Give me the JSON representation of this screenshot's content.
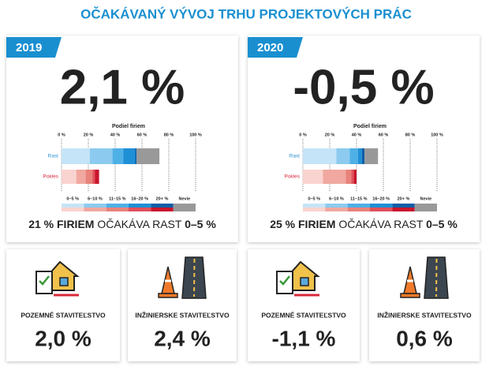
{
  "title": "OČAKÁVANÝ VÝVOJ TRHU PROJEKTOVÝCH PRÁC",
  "panels": [
    {
      "year": "2019",
      "headline": "2,1 %",
      "chart": {
        "type": "bar",
        "title": "Podiel firiem",
        "categories": [
          "Rast",
          "Pokles"
        ],
        "category_colors": [
          "#2a8fd0",
          "#d8283a"
        ],
        "xlim": [
          0,
          100
        ],
        "xticks": [
          {
            "value": 0,
            "label": "0 %"
          },
          {
            "value": 20,
            "label": "20 %"
          },
          {
            "value": 40,
            "label": "40 %"
          },
          {
            "value": 60,
            "label": "60 %"
          },
          {
            "value": 80,
            "label": "80 %"
          },
          {
            "value": 100,
            "label": "100 %"
          }
        ],
        "grid": true,
        "series": [
          {
            "name": "0–5 %",
            "colors": [
              "#c6e4f7",
              "#f9d3cf"
            ],
            "values": [
              21,
              11
            ]
          },
          {
            "name": "6–10 %",
            "colors": [
              "#8ccbef",
              "#f0a8a0"
            ],
            "values": [
              17,
              7
            ]
          },
          {
            "name": "11–15 %",
            "colors": [
              "#4fb0e6",
              "#e8827a"
            ],
            "values": [
              8,
              5
            ]
          },
          {
            "name": "16–20 %",
            "colors": [
              "#1f8fd6",
              "#e0515a"
            ],
            "values": [
              9,
              2
            ]
          },
          {
            "name": "20+ %",
            "colors": [
              "#0d5fa8",
              "#c8142c"
            ],
            "values": [
              1,
              3
            ]
          },
          {
            "name": "Nevie",
            "colors": [
              "#999999",
              "#999999"
            ],
            "values": [
              17,
              0
            ]
          }
        ]
      },
      "note_parts": [
        "21 % FIRIEM",
        " OČAKÁVA RAST ",
        "0–5 %"
      ]
    },
    {
      "year": "2020",
      "headline": "-0,5 %",
      "chart": {
        "type": "bar",
        "title": "Podiel firiem",
        "categories": [
          "Rast",
          "Pokles"
        ],
        "category_colors": [
          "#2a8fd0",
          "#d8283a"
        ],
        "xlim": [
          0,
          100
        ],
        "xticks": [
          {
            "value": 0,
            "label": "0 %"
          },
          {
            "value": 20,
            "label": "20 %"
          },
          {
            "value": 40,
            "label": "40 %"
          },
          {
            "value": 60,
            "label": "60 %"
          },
          {
            "value": 80,
            "label": "80 %"
          },
          {
            "value": 100,
            "label": "100 %"
          }
        ],
        "grid": true,
        "series": [
          {
            "name": "0–5 %",
            "colors": [
              "#c6e4f7",
              "#f9d3cf"
            ],
            "values": [
              25,
              15
            ]
          },
          {
            "name": "6–10 %",
            "colors": [
              "#8ccbef",
              "#f0a8a0"
            ],
            "values": [
              10,
              17
            ]
          },
          {
            "name": "11–15 %",
            "colors": [
              "#4fb0e6",
              "#e8827a"
            ],
            "values": [
              6,
              4
            ]
          },
          {
            "name": "16–20 %",
            "colors": [
              "#1f8fd6",
              "#e0515a"
            ],
            "values": [
              3,
              2
            ]
          },
          {
            "name": "20+ %",
            "colors": [
              "#0d5fa8",
              "#c8142c"
            ],
            "values": [
              2,
              2
            ]
          },
          {
            "name": "Nevie",
            "colors": [
              "#999999",
              "#999999"
            ],
            "values": [
              10,
              0
            ]
          }
        ]
      },
      "note_parts": [
        "25 % FIRIEM",
        " OČAKÁVA RAST ",
        "0–5 %"
      ]
    }
  ],
  "cards": [
    {
      "label": "POZEMNÉ STAVITEĽSTVO",
      "value": "2,0 %"
    },
    {
      "label": "INŽINIERSKE STAVITEĽSTVO",
      "value": "2,4 %"
    },
    {
      "label": "POZEMNÉ STAVITEĽSTVO",
      "value": "-1,1 %"
    },
    {
      "label": "INŽINIERSKE STAVITEĽSTVO",
      "value": "0,6 %"
    }
  ]
}
